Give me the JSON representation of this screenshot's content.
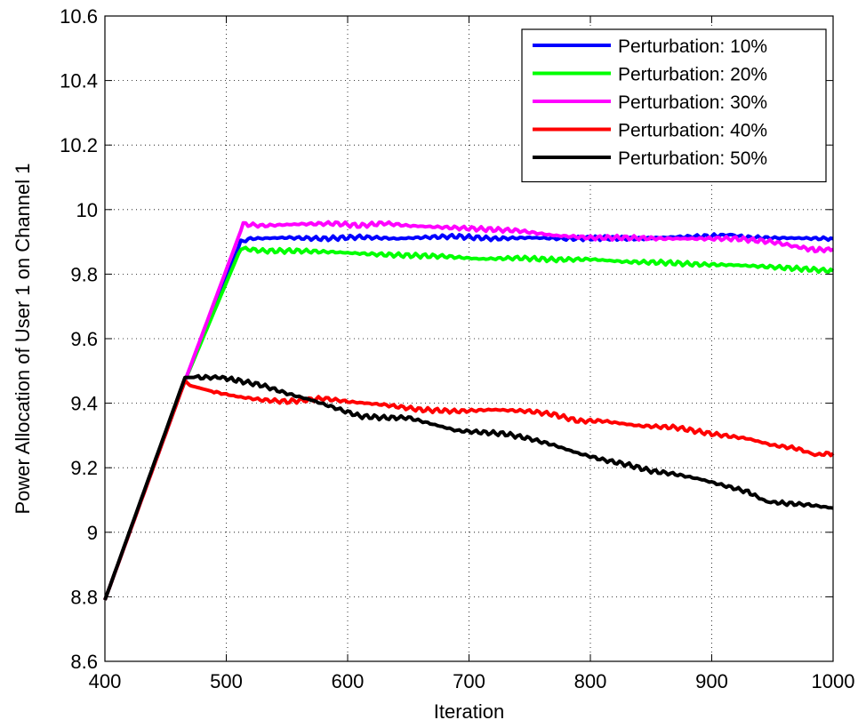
{
  "chart_data": {
    "type": "line",
    "title": "",
    "xlabel": "Iteration",
    "ylabel": "Power Allocation of User 1 on Channel 1",
    "xlim": [
      400,
      1000
    ],
    "ylim": [
      8.6,
      10.6
    ],
    "xticks": [
      400,
      500,
      600,
      700,
      800,
      900,
      1000
    ],
    "xtick_labels": [
      "400",
      "500",
      "600",
      "700",
      "800",
      "900",
      "1000"
    ],
    "yticks": [
      8.6,
      8.8,
      9.0,
      9.2,
      9.4,
      9.6,
      9.8,
      10.0,
      10.2,
      10.4,
      10.6
    ],
    "ytick_labels": [
      "8.6",
      "8.8",
      "9",
      "9.2",
      "9.4",
      "9.6",
      "9.8",
      "10",
      "10.2",
      "10.4",
      "10.6"
    ],
    "grid": true,
    "grid_style": "dotted",
    "legend_position": "top-right",
    "series": [
      {
        "name": "Perturbation: 10%",
        "color": "#0000ff",
        "x": [
          400,
          466,
          512,
          520,
          550,
          580,
          610,
          640,
          670,
          690,
          720,
          750,
          780,
          810,
          840,
          870,
          900,
          915,
          930,
          960,
          1000
        ],
        "y": [
          8.79,
          9.47,
          9.9,
          9.91,
          9.913,
          9.91,
          9.915,
          9.91,
          9.915,
          9.917,
          9.91,
          9.913,
          9.91,
          9.912,
          9.91,
          9.915,
          9.918,
          9.922,
          9.913,
          9.912,
          9.91
        ]
      },
      {
        "name": "Perturbation: 20%",
        "color": "#00ff00",
        "x": [
          400,
          466,
          512,
          530,
          560,
          590,
          620,
          650,
          680,
          710,
          740,
          770,
          800,
          830,
          860,
          890,
          920,
          950,
          980,
          1000
        ],
        "y": [
          8.79,
          9.47,
          9.88,
          9.872,
          9.872,
          9.868,
          9.862,
          9.858,
          9.855,
          9.847,
          9.85,
          9.845,
          9.846,
          9.838,
          9.836,
          9.83,
          9.828,
          9.822,
          9.815,
          9.81
        ]
      },
      {
        "name": "Perturbation: 30%",
        "color": "#ff00ff",
        "x": [
          400,
          466,
          514,
          530,
          560,
          590,
          610,
          630,
          650,
          680,
          710,
          740,
          770,
          800,
          830,
          860,
          890,
          920,
          950,
          970,
          985,
          1000
        ],
        "y": [
          8.79,
          9.47,
          9.955,
          9.95,
          9.955,
          9.957,
          9.95,
          9.958,
          9.95,
          9.945,
          9.94,
          9.935,
          9.92,
          9.913,
          9.913,
          9.91,
          9.91,
          9.91,
          9.9,
          9.885,
          9.875,
          9.877
        ]
      },
      {
        "name": "Perturbation: 40%",
        "color": "#ff0000",
        "x": [
          400,
          466,
          470,
          490,
          510,
          530,
          550,
          580,
          600,
          630,
          660,
          690,
          720,
          750,
          770,
          790,
          810,
          840,
          870,
          900,
          930,
          950,
          970,
          985,
          1000
        ],
        "y": [
          8.79,
          9.47,
          9.455,
          9.435,
          9.42,
          9.41,
          9.405,
          9.415,
          9.405,
          9.395,
          9.38,
          9.375,
          9.38,
          9.375,
          9.365,
          9.345,
          9.345,
          9.33,
          9.325,
          9.305,
          9.29,
          9.27,
          9.26,
          9.24,
          9.245
        ]
      },
      {
        "name": "Perturbation: 50%",
        "color": "#000000",
        "x": [
          400,
          466,
          475,
          495,
          510,
          530,
          550,
          570,
          590,
          610,
          630,
          650,
          670,
          690,
          710,
          730,
          750,
          770,
          790,
          810,
          830,
          850,
          870,
          890,
          910,
          930,
          945,
          960,
          980,
          1000
        ],
        "y": [
          8.79,
          9.48,
          9.48,
          9.48,
          9.47,
          9.455,
          9.43,
          9.41,
          9.385,
          9.36,
          9.355,
          9.355,
          9.335,
          9.315,
          9.31,
          9.305,
          9.29,
          9.27,
          9.245,
          9.225,
          9.21,
          9.19,
          9.18,
          9.165,
          9.145,
          9.125,
          9.095,
          9.09,
          9.085,
          9.075
        ]
      }
    ]
  }
}
